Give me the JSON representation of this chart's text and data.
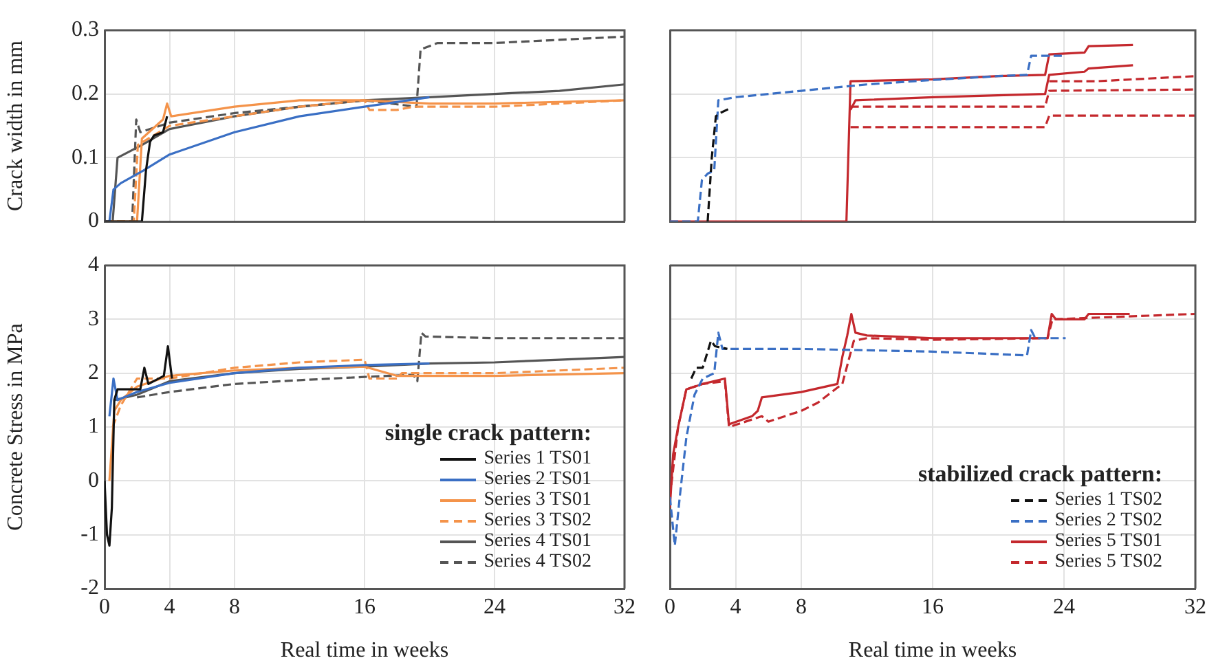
{
  "chart_data": [
    {
      "type": "line",
      "ylabel": "Crack width in mm",
      "xlim": [
        0,
        32
      ],
      "xticks": [
        0,
        4,
        8,
        16,
        24,
        32
      ],
      "ylim": [
        0,
        0.3
      ],
      "yticks": [
        0,
        0.1,
        0.2,
        0.3
      ],
      "grid": true,
      "tick_labels": "y",
      "series": [
        {
          "color": "#111111",
          "line_style": "solid",
          "x": [
            0,
            2.3,
            2.55,
            2.8,
            3.05,
            3.6,
            3.85
          ],
          "values": [
            0,
            0,
            0.08,
            0.125,
            0.135,
            0.14,
            0.165
          ]
        },
        {
          "color": "#3a6fc4",
          "line_style": "solid",
          "x": [
            0,
            0.3,
            0.55,
            1,
            2.4,
            4,
            8,
            12,
            16,
            20
          ],
          "values": [
            0,
            0,
            0.05,
            0.06,
            0.08,
            0.105,
            0.14,
            0.165,
            0.18,
            0.195
          ]
        },
        {
          "color": "#f4934a",
          "line_style": "solid",
          "x": [
            0,
            2.0,
            2.3,
            3.6,
            3.85,
            4.1,
            8,
            12,
            16,
            20,
            24,
            32
          ],
          "values": [
            0,
            0,
            0.13,
            0.16,
            0.185,
            0.165,
            0.18,
            0.19,
            0.19,
            0.185,
            0.185,
            0.19
          ]
        },
        {
          "color": "#f4934a",
          "line_style": "dashed",
          "x": [
            0,
            1.8,
            2.05,
            4,
            8,
            12,
            16,
            16.3,
            18,
            19,
            24,
            32
          ],
          "values": [
            0,
            0,
            0.12,
            0.15,
            0.165,
            0.18,
            0.19,
            0.175,
            0.175,
            0.18,
            0.18,
            0.19
          ]
        },
        {
          "color": "#555555",
          "line_style": "solid",
          "x": [
            0,
            0.5,
            0.8,
            2.3,
            4,
            8,
            12,
            16,
            20,
            24,
            28,
            32
          ],
          "values": [
            0,
            0,
            0.1,
            0.12,
            0.145,
            0.165,
            0.18,
            0.19,
            0.195,
            0.2,
            0.205,
            0.215
          ]
        },
        {
          "color": "#555555",
          "line_style": "dashed",
          "x": [
            0,
            1.7,
            1.95,
            2.2,
            4,
            8,
            12,
            16,
            19.2,
            19.45,
            20.5,
            24,
            28,
            32
          ],
          "values": [
            0,
            0,
            0.16,
            0.14,
            0.155,
            0.17,
            0.18,
            0.19,
            0.18,
            0.27,
            0.28,
            0.28,
            0.285,
            0.29
          ]
        }
      ]
    },
    {
      "type": "line",
      "xlim": [
        0,
        32
      ],
      "xticks": [
        0,
        4,
        8,
        16,
        24,
        32
      ],
      "ylim": [
        0,
        0.3
      ],
      "yticks": [
        0,
        0.1,
        0.2,
        0.3
      ],
      "grid": true,
      "tick_labels": false,
      "series": [
        {
          "color": "#111111",
          "line_style": "dashed",
          "x": [
            2.3,
            2.55,
            2.8,
            3.05,
            3.7
          ],
          "values": [
            0,
            0.1,
            0.165,
            0.17,
            0.178
          ]
        },
        {
          "color": "#3a6fc4",
          "line_style": "dashed",
          "x": [
            0,
            1.7,
            1.95,
            2.3,
            2.7,
            2.95,
            4,
            8,
            12,
            16,
            20,
            21.75,
            22,
            24.1
          ],
          "values": [
            0,
            0,
            0.065,
            0.075,
            0.08,
            0.19,
            0.195,
            0.205,
            0.215,
            0.222,
            0.228,
            0.23,
            0.26,
            0.26
          ]
        },
        {
          "color": "#c4282d",
          "line_style": "solid",
          "x": [
            0,
            10.75,
            11,
            16,
            20,
            22.85,
            23.1,
            25.25,
            25.5,
            28.2
          ],
          "values": [
            0,
            0,
            0.22,
            0.223,
            0.228,
            0.23,
            0.262,
            0.265,
            0.275,
            0.277
          ]
        },
        {
          "color": "#c4282d",
          "line_style": "solid",
          "x": [
            11,
            11.3,
            16,
            22.85,
            23.1,
            25.25,
            25.5,
            28.2
          ],
          "values": [
            0.175,
            0.19,
            0.195,
            0.2,
            0.23,
            0.235,
            0.24,
            0.245
          ]
        },
        {
          "color": "#c4282d",
          "line_style": "dashed",
          "x": [
            11,
            22.85,
            23.1,
            32
          ],
          "values": [
            0.148,
            0.148,
            0.166,
            0.166
          ]
        },
        {
          "color": "#c4282d",
          "line_style": "dashed",
          "x": [
            11,
            22.85,
            23.1,
            32
          ],
          "values": [
            0.18,
            0.18,
            0.205,
            0.207
          ]
        },
        {
          "color": "#c4282d",
          "line_style": "dashed",
          "x": [
            23.1,
            26,
            32
          ],
          "values": [
            0.22,
            0.22,
            0.228
          ]
        }
      ]
    },
    {
      "type": "line",
      "xlabel": "Real time in weeks",
      "ylabel": "Concrete Stress in MPa",
      "xlim": [
        0,
        32
      ],
      "xticks": [
        0,
        4,
        8,
        16,
        24,
        32
      ],
      "ylim": [
        -2,
        4
      ],
      "yticks": [
        -2,
        -1,
        0,
        1,
        2,
        3,
        4
      ],
      "grid": true,
      "legend": "bottom right",
      "legend_title": "single crack pattern:",
      "series": [
        {
          "name": "Series 1 TS01",
          "color": "#111111",
          "line_style": "solid",
          "x": [
            0,
            0.15,
            0.3,
            0.45,
            0.6,
            0.8,
            2.2,
            2.45,
            2.7,
            3.65,
            3.9,
            4.15
          ],
          "values": [
            0,
            -1,
            -1.2,
            -0.5,
            1.5,
            1.7,
            1.7,
            2.1,
            1.8,
            1.95,
            2.5,
            1.9
          ]
        },
        {
          "name": "Series 2 TS01",
          "color": "#3a6fc4",
          "line_style": "solid",
          "x": [
            0.3,
            0.55,
            0.8,
            2,
            4,
            8,
            12,
            16,
            20
          ],
          "values": [
            1.2,
            1.9,
            1.5,
            1.65,
            1.82,
            2.0,
            2.1,
            2.15,
            2.18
          ]
        },
        {
          "name": "Series 3 TS01",
          "color": "#f4934a",
          "line_style": "solid",
          "x": [
            0.3,
            0.6,
            1,
            2,
            4,
            8,
            12,
            16,
            18,
            24,
            32
          ],
          "values": [
            0,
            1.3,
            1.5,
            1.75,
            1.95,
            2.05,
            2.1,
            2.12,
            1.95,
            1.95,
            2.0
          ]
        },
        {
          "name": "Series 3 TS02",
          "color": "#f4934a",
          "line_style": "dashed",
          "x": [
            0.5,
            1,
            2,
            4,
            8,
            12,
            16,
            16.3,
            18,
            18.3,
            24,
            32
          ],
          "values": [
            1.0,
            1.4,
            1.9,
            1.9,
            2.1,
            2.2,
            2.25,
            1.9,
            1.9,
            2.0,
            2.0,
            2.1
          ]
        },
        {
          "name": "Series 4 TS01",
          "color": "#555555",
          "line_style": "solid",
          "x": [
            0.6,
            2,
            4,
            8,
            12,
            16,
            20,
            24,
            28,
            32
          ],
          "values": [
            1.5,
            1.6,
            1.85,
            2.0,
            2.08,
            2.12,
            2.18,
            2.2,
            2.25,
            2.3
          ]
        },
        {
          "name": "Series 4 TS02",
          "color": "#555555",
          "line_style": "dashed",
          "x": [
            2,
            4,
            8,
            12,
            16,
            19.0,
            19.25,
            19.5,
            19.75,
            24,
            32
          ],
          "values": [
            1.55,
            1.65,
            1.8,
            1.87,
            1.93,
            1.97,
            1.85,
            2.75,
            2.68,
            2.65,
            2.65
          ]
        }
      ]
    },
    {
      "type": "line",
      "xlabel": "Real time in weeks",
      "xlim": [
        0,
        32
      ],
      "xticks": [
        0,
        4,
        8,
        16,
        24,
        32
      ],
      "ylim": [
        -2,
        4
      ],
      "yticks": [
        -2,
        -1,
        0,
        1,
        2,
        3,
        4
      ],
      "grid": true,
      "tick_labels": "x",
      "legend": "bottom right",
      "legend_title": "stabilized crack pattern:",
      "series": [
        {
          "name": "Series 1 TS02",
          "color": "#111111",
          "line_style": "dashed",
          "x": [
            1.3,
            1.6,
            2.0,
            2.5,
            2.75,
            3.5
          ],
          "values": [
            1.9,
            2.1,
            2.1,
            2.6,
            2.5,
            2.45
          ]
        },
        {
          "name": "Series 2 TS02",
          "color": "#3a6fc4",
          "line_style": "dashed",
          "x": [
            0,
            0.3,
            0.6,
            1,
            1.5,
            2,
            2.7,
            2.95,
            3.2,
            8,
            16,
            21.75,
            22,
            22.25,
            24.1
          ],
          "values": [
            -0.3,
            -1.2,
            -0.3,
            0.8,
            1.6,
            1.9,
            2.0,
            2.75,
            2.45,
            2.45,
            2.4,
            2.33,
            2.8,
            2.65,
            2.65
          ]
        },
        {
          "name": "Series 5 TS01",
          "color": "#c4282d",
          "line_style": "solid",
          "x": [
            0,
            0.2,
            0.5,
            1,
            2,
            3.35,
            3.6,
            5,
            5.35,
            5.6,
            8,
            10.2,
            10.5,
            10.8,
            11.05,
            11.3,
            12,
            16,
            23.0,
            23.25,
            23.5,
            25.25,
            25.5,
            28
          ],
          "values": [
            -0.5,
            0.5,
            1.0,
            1.7,
            1.8,
            1.9,
            1.05,
            1.2,
            1.3,
            1.55,
            1.65,
            1.8,
            2.3,
            2.7,
            3.1,
            2.75,
            2.7,
            2.65,
            2.65,
            3.1,
            3.0,
            3.0,
            3.1,
            3.1
          ]
        },
        {
          "name": "Series 5 TS02",
          "color": "#c4282d",
          "line_style": "dashed",
          "x": [
            0,
            0.5,
            1,
            2,
            3.35,
            3.6,
            5.6,
            6,
            8,
            9,
            10.5,
            11.2,
            12,
            16,
            23,
            23.3,
            32
          ],
          "values": [
            -0.3,
            1.0,
            1.7,
            1.8,
            1.85,
            1.0,
            1.2,
            1.1,
            1.3,
            1.45,
            1.8,
            2.6,
            2.65,
            2.62,
            2.65,
            3.0,
            3.1
          ]
        }
      ]
    }
  ]
}
